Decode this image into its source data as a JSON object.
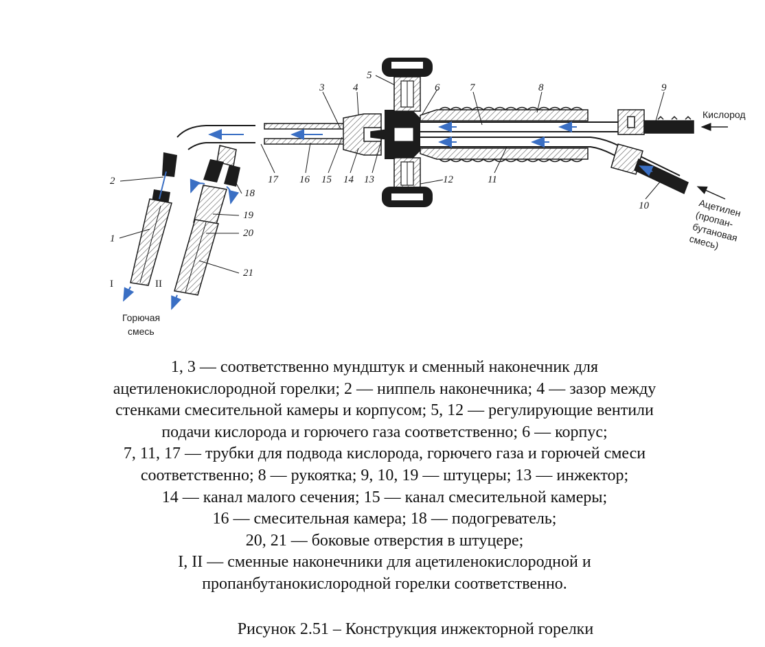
{
  "diagram": {
    "labels": {
      "n1": "1",
      "n2": "2",
      "n3": "3",
      "n4": "4",
      "n5": "5",
      "n6": "6",
      "n7": "7",
      "n8": "8",
      "n9": "9",
      "n10": "10",
      "n11": "11",
      "n12": "12",
      "n13": "13",
      "n14": "14",
      "n15": "15",
      "n16": "16",
      "n17": "17",
      "n18": "18",
      "n19": "19",
      "n20": "20",
      "n21": "21",
      "roman1": "I",
      "roman2": "II"
    },
    "oxygen_label": "Кислород",
    "acetylene_label": [
      "Ацетилен",
      "(пропан-",
      "бутановая",
      "смесь)"
    ],
    "mixture_label": [
      "Горючая",
      "смесь"
    ],
    "colors": {
      "line": "#1a1a1a",
      "hatch": "#555555",
      "arrow": "#3a6fc4",
      "dark": "#1c1c1c"
    }
  },
  "caption": {
    "lines": [
      "1, 3 — соответственно мундштук и сменный наконечник для",
      "ацетиленокислородной горелки; 2 — ниппель наконечника; 4 — зазор между",
      "стенками смесительной камеры и корпусом; 5, 12 — регулирующие вентили",
      "подачи кислорода и горючего газа соответственно; 6 — корпус;",
      "7, 11, 17 — трубки для подвода кислорода, горючего газа и горючей смеси",
      "соответственно; 8 — рукоятка; 9, 10, 19 — штуцеры; 13 — инжектор;",
      "14 — канал малого сечения; 15 — канал смесительной камеры;",
      "16 — смесительная камера; 18 — подогреватель;",
      "20, 21 — боковые отверстия в штуцере;",
      "I, II — сменные наконечники для ацетиленокислородной и",
      "пропанбутанокислородной горелки соответственно."
    ]
  },
  "figure_title": "Рисунок 2.51 –  Конструкция инжекторной горелки"
}
